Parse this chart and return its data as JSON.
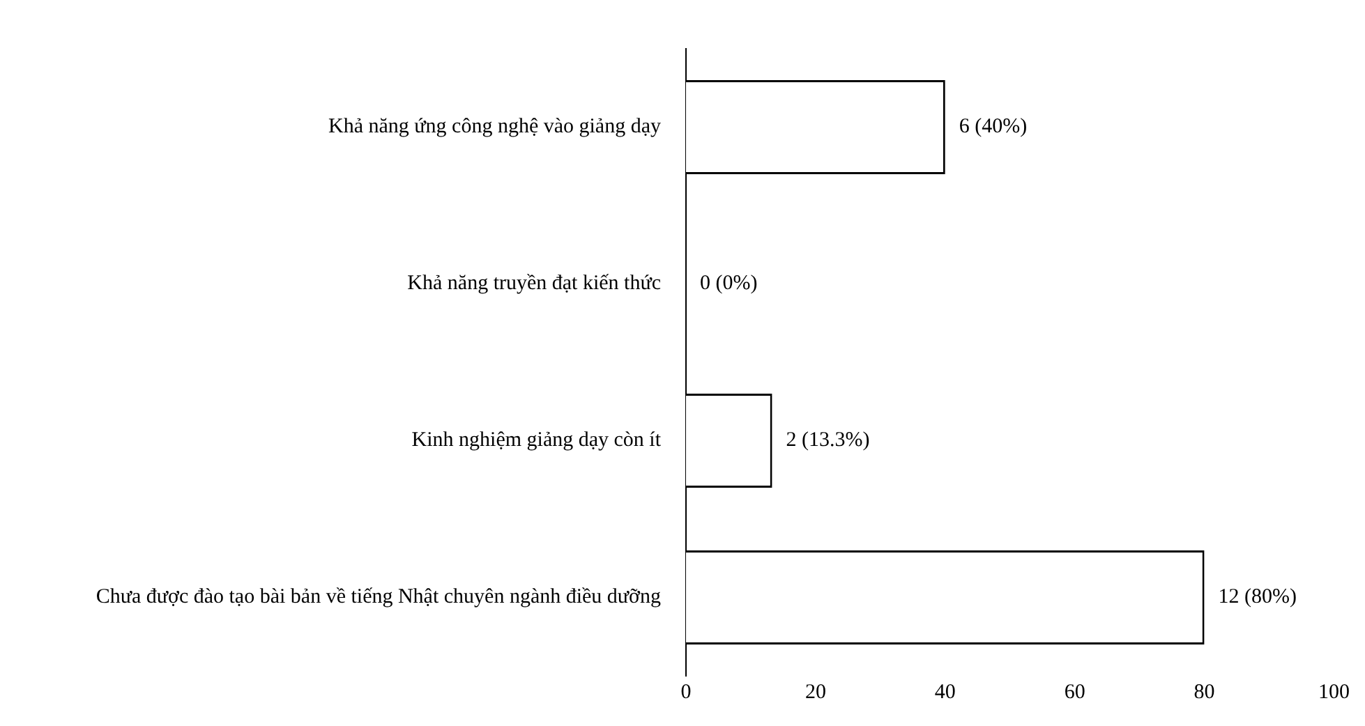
{
  "chart_data": {
    "type": "bar",
    "orientation": "horizontal",
    "categories": [
      "Khả năng ứng công nghệ vào giảng dạy",
      "Khả năng truyền đạt kiến thức",
      "Kinh nghiệm giảng dạy còn ít",
      "Chưa được đào tạo bài bản về tiếng Nhật chuyên ngành điều dưỡng"
    ],
    "values": [
      40,
      0,
      13.3,
      80
    ],
    "value_labels": [
      "6 (40%)",
      "0 (0%)",
      "2 (13.3%)",
      "12 (80%)"
    ],
    "color": "#ffffff",
    "xlim": [
      0,
      100
    ],
    "xticks": [
      0,
      20,
      40,
      60,
      80,
      100
    ],
    "grid": false,
    "legend": false
  }
}
